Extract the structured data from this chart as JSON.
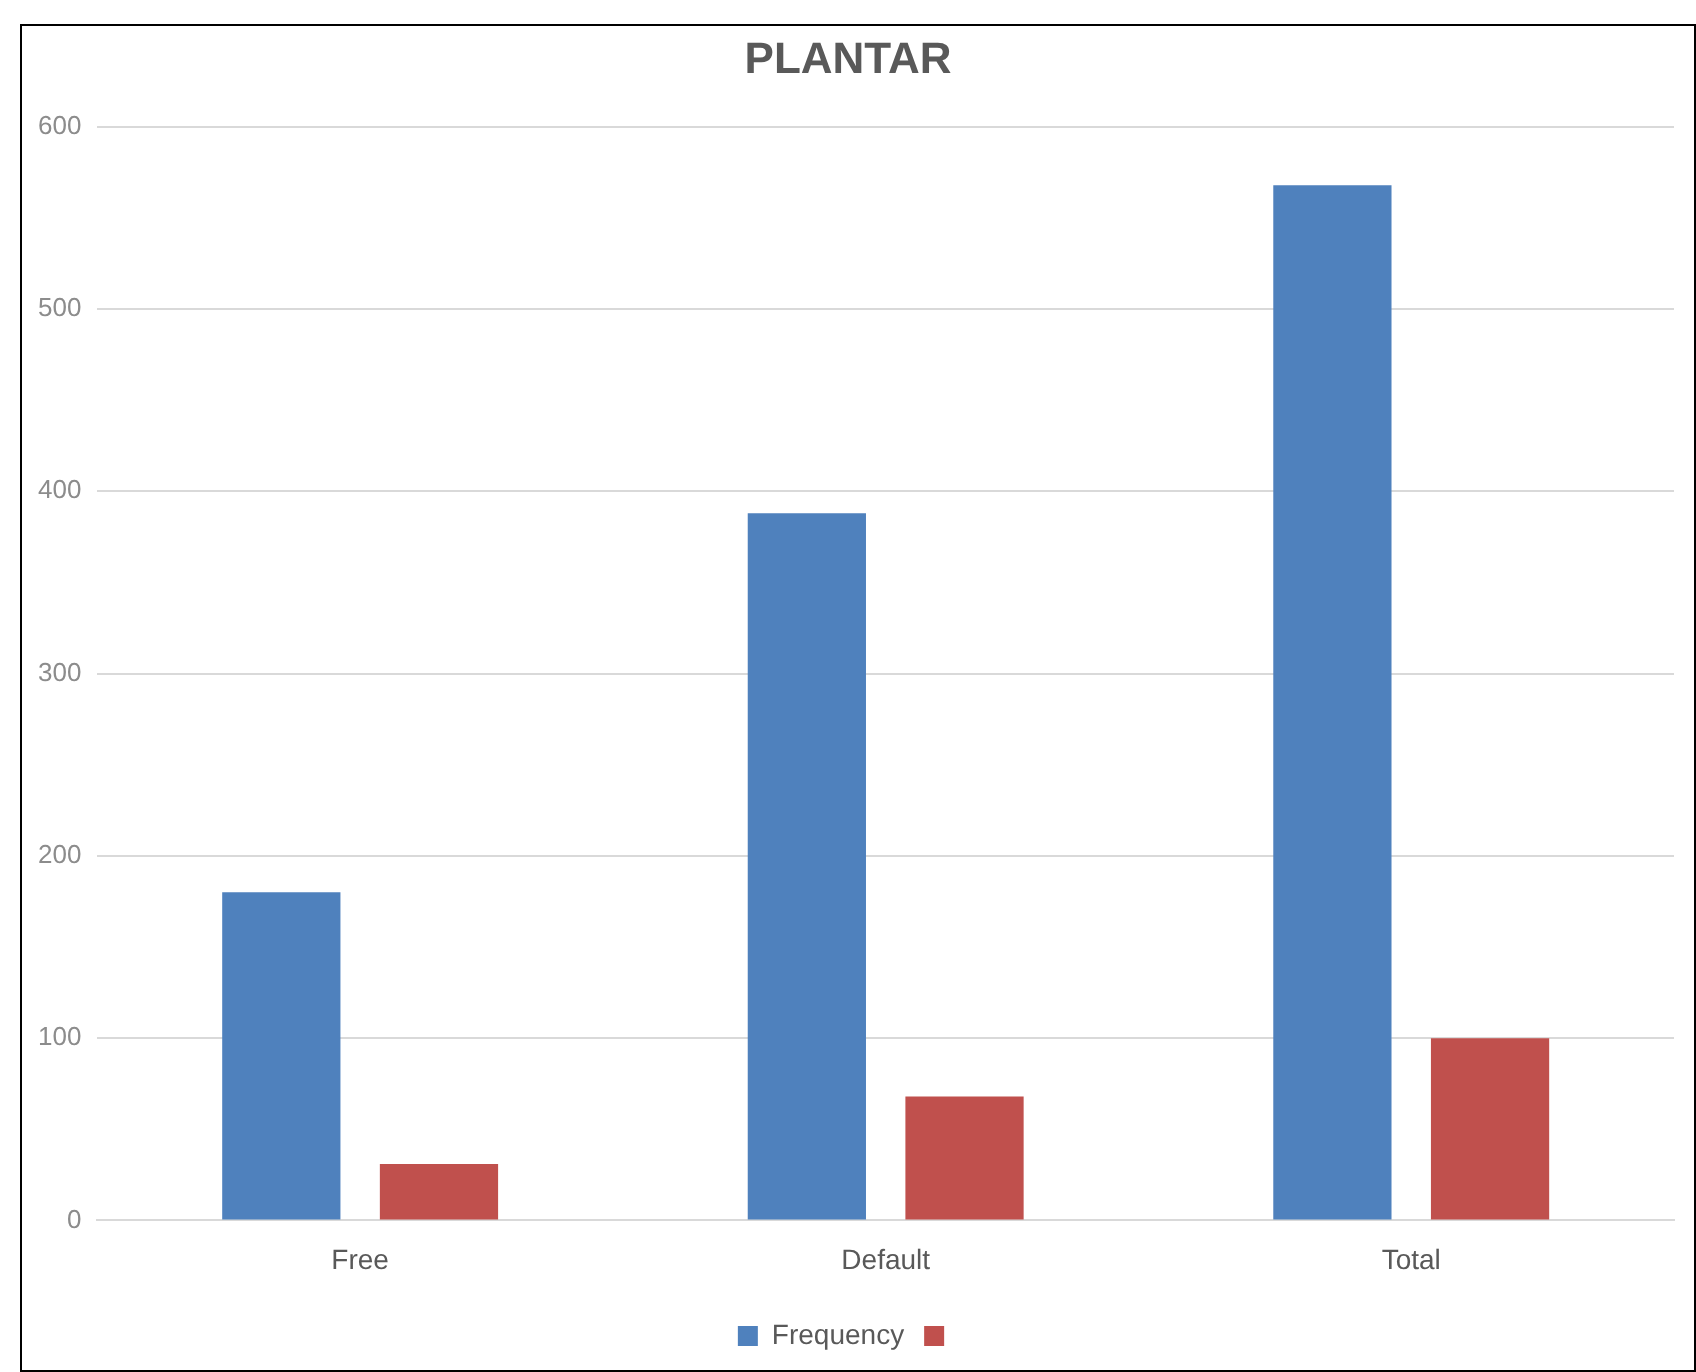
{
  "chart_data": {
    "type": "bar",
    "title": "PLANTAR",
    "categories": [
      "Free",
      "Default",
      "Total"
    ],
    "series": [
      {
        "name": "Frequency",
        "color": "#4f81bd",
        "values": [
          180,
          388,
          568
        ]
      },
      {
        "color": "#c0504d",
        "values": [
          31,
          68,
          100
        ]
      }
    ],
    "ylim": [
      0,
      600
    ],
    "yticks": [
      0,
      100,
      200,
      300,
      400,
      500,
      600
    ],
    "grid": "y",
    "legend": "bottom"
  }
}
